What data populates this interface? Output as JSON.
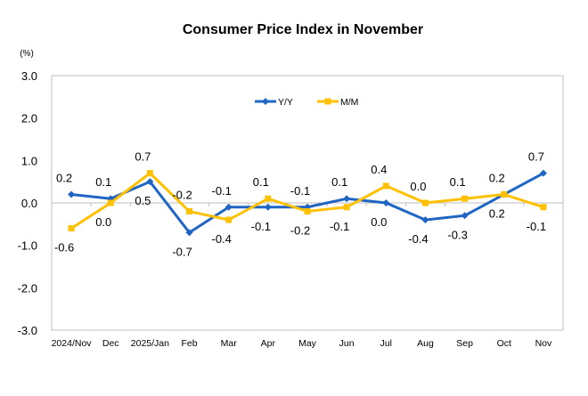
{
  "chart_data": {
    "type": "line",
    "title": "Consumer Price Index in November",
    "ylabel": "(%)",
    "xlabel": "",
    "ylim": [
      -3.0,
      3.0
    ],
    "yticks": [
      "3.0",
      "2.0",
      "1.0",
      "0.0",
      "-1.0",
      "-2.0",
      "-3.0"
    ],
    "categories": [
      "2024/Nov",
      "Dec",
      "2025/Jan",
      "Feb",
      "Mar",
      "Apr",
      "May",
      "Jun",
      "Jul",
      "Aug",
      "Sep",
      "Oct",
      "Nov"
    ],
    "legend_position": "top-center",
    "grid": false,
    "series": [
      {
        "name": "Y/Y",
        "color": "#1F66C4",
        "marker": "diamond",
        "values": [
          0.2,
          0.1,
          0.5,
          -0.7,
          -0.1,
          -0.1,
          -0.1,
          0.1,
          0.0,
          -0.4,
          -0.3,
          0.2,
          0.7
        ],
        "labels": [
          "0.2",
          "0.1",
          "0.5",
          "-0.7",
          "-0.1",
          "-0.1",
          "-0.1",
          "0.1",
          "0.0",
          "-0.4",
          "-0.3",
          "0.2",
          "0.7"
        ]
      },
      {
        "name": "M/M",
        "color": "#FFC000",
        "marker": "square",
        "values": [
          -0.6,
          0.0,
          0.7,
          -0.2,
          -0.4,
          0.1,
          -0.2,
          -0.1,
          0.4,
          0.0,
          0.1,
          0.2,
          -0.1
        ],
        "labels": [
          "-0.6",
          "0.0",
          "0.7",
          "-0.2",
          "-0.4",
          "0.1",
          "-0.2",
          "-0.1",
          "0.4",
          "0.0",
          "0.1",
          "0.2",
          "-0.1"
        ]
      }
    ]
  }
}
